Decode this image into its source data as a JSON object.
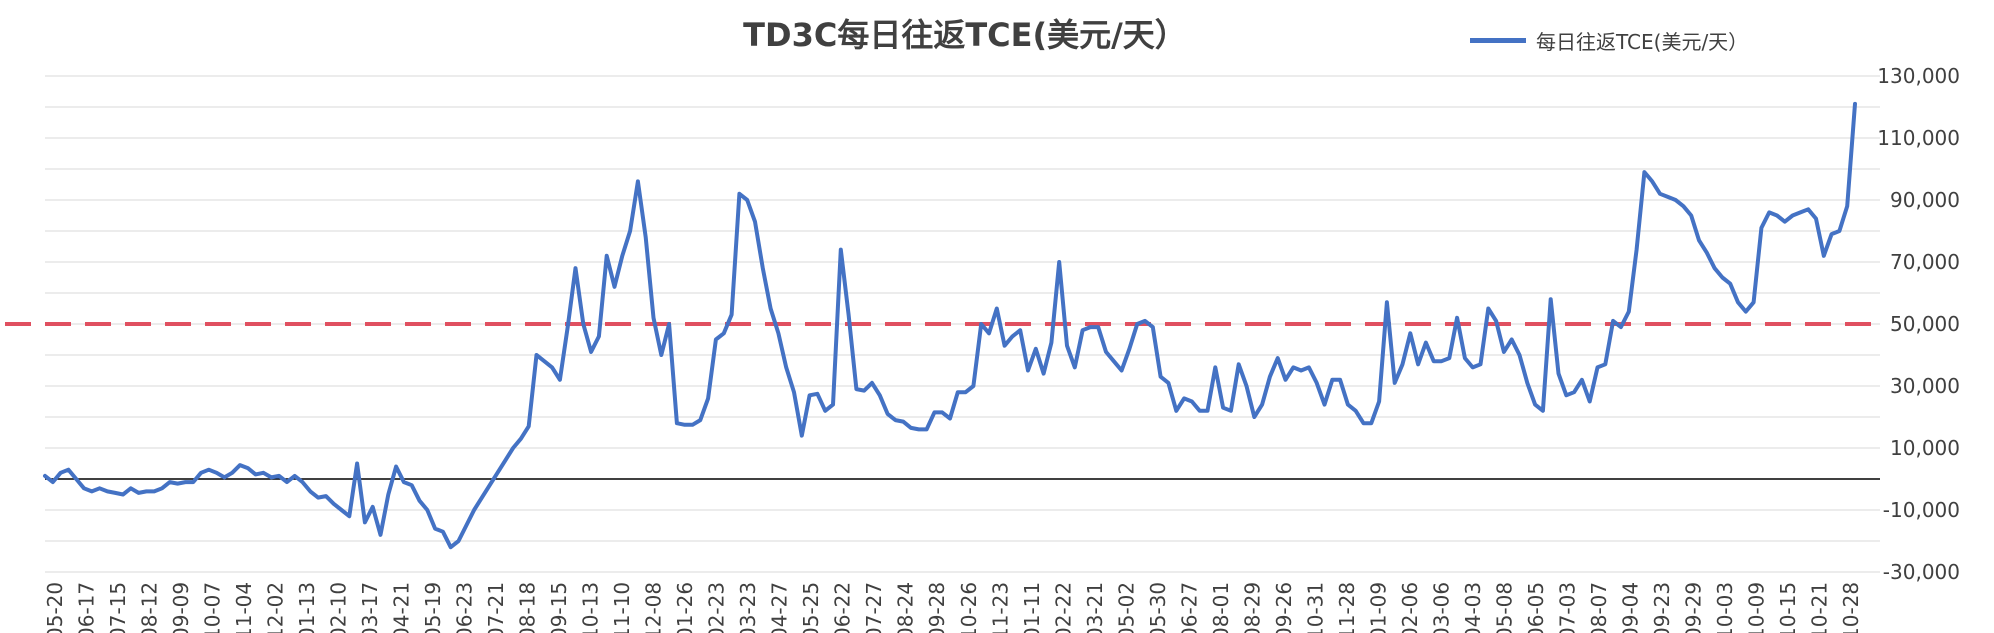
{
  "chart_data": {
    "type": "line",
    "title": "TD3C每日往返TCE(美元/天）",
    "legend": "top-right",
    "series": [
      {
        "name": "每日往返TCE(美元/天）",
        "color": "#4472C4",
        "values": [
          1000,
          -1000,
          2000,
          3000,
          0,
          -3000,
          -4000,
          -3000,
          -4000,
          -4500,
          -5000,
          -3000,
          -4500,
          -4000,
          -4000,
          -3000,
          -1000,
          -1500,
          -1000,
          -1000,
          2000,
          3000,
          2000,
          500,
          2000,
          4500,
          3500,
          1500,
          2000,
          500,
          1000,
          -1000,
          1000,
          -1000,
          -4000,
          -6000,
          -5500,
          -8000,
          -10000,
          -12000,
          5000,
          -14000,
          -9000,
          -18000,
          -5000,
          4000,
          -1000,
          -2000,
          -7000,
          -10000,
          -16000,
          -17000,
          -22000,
          -20000,
          -15000,
          -10000,
          -6000,
          -2000,
          2000,
          6000,
          10000,
          13000,
          17000,
          40000,
          38000,
          36000,
          32000,
          49000,
          68000,
          50000,
          41000,
          46000,
          72000,
          62000,
          72000,
          80000,
          96000,
          78000,
          52000,
          40000,
          50000,
          18000,
          17500,
          17500,
          19000,
          26000,
          45000,
          47000,
          53000,
          92000,
          90000,
          83000,
          68000,
          55000,
          47000,
          36000,
          28000,
          14000,
          27000,
          27500,
          22000,
          24000,
          74000,
          53000,
          29000,
          28500,
          31000,
          27000,
          21000,
          19000,
          18500,
          16500,
          16000,
          16000,
          21500,
          21500,
          19500,
          28000,
          28000,
          30000,
          50000,
          47000,
          55000,
          43000,
          46000,
          48000,
          35000,
          42000,
          34000,
          44000,
          70000,
          43000,
          36000,
          48000,
          49000,
          49000,
          41000,
          38000,
          35000,
          42000,
          50000,
          51000,
          49000,
          33000,
          31000,
          22000,
          26000,
          25000,
          22000,
          22000,
          36000,
          23000,
          22000,
          37000,
          30000,
          20000,
          24000,
          33000,
          39000,
          32000,
          36000,
          35000,
          36000,
          31000,
          24000,
          32000,
          32000,
          24000,
          22000,
          18000,
          18000,
          25000,
          57000,
          31000,
          37000,
          47000,
          37000,
          44000,
          38000,
          38000,
          39000,
          52000,
          39000,
          36000,
          37000,
          55000,
          51000,
          41000,
          45000,
          40000,
          31000,
          24000,
          22000,
          58000,
          34000,
          27000,
          28000,
          32000,
          25000,
          36000,
          37000,
          51000,
          49000,
          54000,
          74000,
          99000,
          96000,
          92000,
          91000,
          90000,
          88000,
          85000,
          77000,
          73000,
          68000,
          65000,
          63000,
          57000,
          54000,
          57000,
          81000,
          86000,
          85000,
          83000,
          85000,
          86000,
          87000,
          84000,
          72000,
          79000,
          80000,
          88000,
          121000
        ]
      }
    ],
    "reference_line": {
      "value": 50000,
      "color": "#E05060",
      "style": "dashed"
    },
    "ylim": [
      -30000,
      130000
    ],
    "y_ticks": [
      "-30,000",
      "-10,000",
      "10,000",
      "30,000",
      "50,000",
      "70,000",
      "90,000",
      "110,000",
      "130,000"
    ],
    "y_tick_values": [
      -30000,
      -10000,
      10000,
      30000,
      50000,
      70000,
      90000,
      110000,
      130000
    ],
    "y_gridlines": [
      -20000,
      0,
      20000,
      40000,
      60000,
      80000,
      100000,
      120000
    ],
    "grid": true,
    "x_tick_labels": [
      "05-20",
      "06-17",
      "07-15",
      "08-12",
      "09-09",
      "10-07",
      "11-04",
      "12-02",
      "01-13",
      "02-10",
      "03-17",
      "04-21",
      "05-19",
      "06-23",
      "07-21",
      "08-18",
      "09-15",
      "10-13",
      "11-10",
      "12-08",
      "01-26",
      "02-23",
      "03-23",
      "04-27",
      "05-25",
      "06-22",
      "07-27",
      "08-24",
      "09-28",
      "10-26",
      "11-23",
      "01-11",
      "02-22",
      "03-21",
      "05-02",
      "05-30",
      "06-27",
      "08-01",
      "08-29",
      "09-26",
      "10-31",
      "11-28",
      "01-09",
      "02-06",
      "03-06",
      "04-03",
      "05-08",
      "06-05",
      "07-03",
      "08-07",
      "09-04",
      "09-23",
      "09-29",
      "10-03",
      "10-09",
      "10-15",
      "10-21",
      "10-28"
    ]
  }
}
